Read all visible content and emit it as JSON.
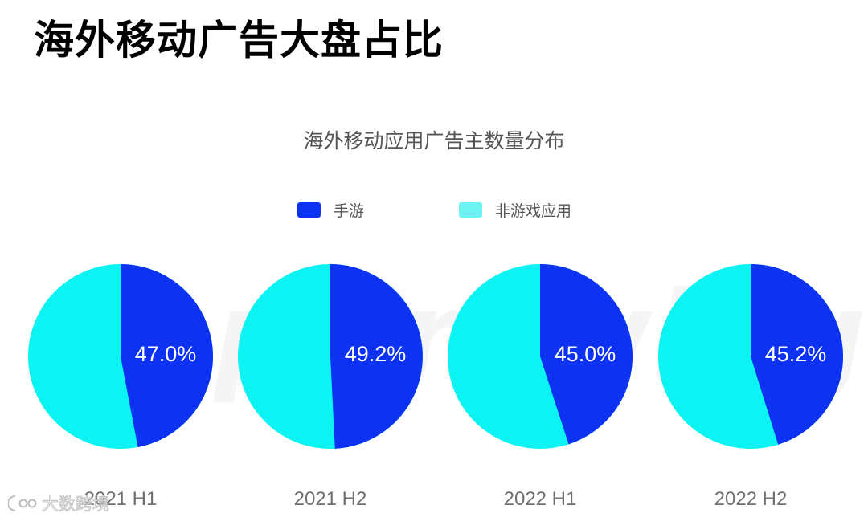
{
  "page_title": "海外移动广告大盘占比",
  "legend": [
    {
      "label": "手游",
      "color": "#0E32F2"
    },
    {
      "label": "非游戏应用",
      "color": "#6EF3F3"
    }
  ],
  "watermark": {
    "text": "AppGrowing"
  },
  "brand_mark": {
    "text": "大数跨境"
  },
  "chart_data": {
    "type": "pie",
    "title": "海外移动应用广告主数量分布",
    "series_names": [
      "手游",
      "非游戏应用"
    ],
    "colors": {
      "game": "#0E32F2",
      "non_game": "#0CF3F3"
    },
    "charts": [
      {
        "category": "2021 H1",
        "values": [
          47.0,
          53.0
        ],
        "label": "47.0%"
      },
      {
        "category": "2021 H2",
        "values": [
          49.2,
          50.8
        ],
        "label": "49.2%"
      },
      {
        "category": "2022 H1",
        "values": [
          45.0,
          55.0
        ],
        "label": "45.0%"
      },
      {
        "category": "2022 H2",
        "values": [
          45.2,
          54.8
        ],
        "label": "45.2%"
      }
    ]
  }
}
